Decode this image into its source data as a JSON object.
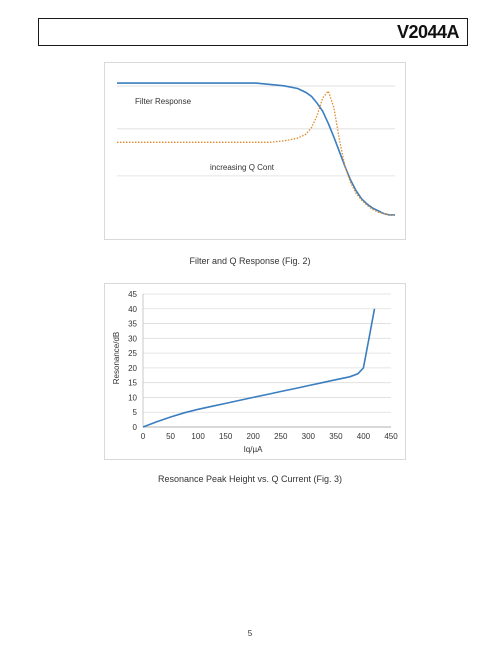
{
  "header": {
    "title": "V2044A"
  },
  "figures": {
    "fig2_caption": "Filter and Q Response (Fig. 2)",
    "fig3_caption": "Resonance Peak Height vs. Q Current (Fig. 3)"
  },
  "page_number": "5",
  "chart_data": [
    {
      "type": "line",
      "title": "",
      "xlabel": "",
      "ylabel": "",
      "grid": true,
      "annotations": [
        "Filter Response",
        "increasing Q Cont"
      ],
      "x": [
        0,
        10,
        20,
        30,
        40,
        50,
        55,
        60,
        65,
        68,
        70,
        72,
        74,
        76,
        78,
        80,
        82,
        84,
        86,
        88,
        90,
        92,
        94,
        96,
        98,
        100
      ],
      "series": [
        {
          "name": "",
          "style": "solid",
          "color": "#3a7ebf",
          "values": [
            0.94,
            0.94,
            0.94,
            0.94,
            0.94,
            0.94,
            0.93,
            0.92,
            0.9,
            0.87,
            0.84,
            0.79,
            0.73,
            0.64,
            0.54,
            0.43,
            0.32,
            0.22,
            0.14,
            0.08,
            0.04,
            0.01,
            -0.01,
            -0.03,
            -0.04,
            -0.04
          ]
        },
        {
          "name": "",
          "style": "dotted",
          "color": "#e08a2a",
          "values": [
            0.5,
            0.5,
            0.5,
            0.5,
            0.5,
            0.5,
            0.5,
            0.51,
            0.53,
            0.56,
            0.61,
            0.7,
            0.83,
            0.88,
            0.76,
            0.52,
            0.32,
            0.2,
            0.12,
            0.07,
            0.03,
            0.0,
            -0.02,
            -0.03,
            -0.04,
            -0.04
          ]
        }
      ]
    },
    {
      "type": "line",
      "title": "",
      "xlabel": "Iq/µA",
      "ylabel": "Resonance/dB",
      "grid": true,
      "xlim": [
        0,
        450
      ],
      "ylim": [
        0,
        45
      ],
      "x_ticks": [
        "0",
        "50",
        "100",
        "150",
        "200",
        "250",
        "300",
        "350",
        "400",
        "450"
      ],
      "y_ticks": [
        "0",
        "5",
        "10",
        "15",
        "20",
        "25",
        "30",
        "35",
        "40",
        "45"
      ],
      "series": [
        {
          "name": "",
          "color": "#3a7ebf",
          "x": [
            0,
            25,
            50,
            75,
            100,
            125,
            150,
            175,
            200,
            225,
            250,
            275,
            300,
            325,
            350,
            375,
            390,
            400,
            410,
            420
          ],
          "values": [
            0,
            1.8,
            3.4,
            4.8,
            6.0,
            7.0,
            8.0,
            9.0,
            10.0,
            11.0,
            12.0,
            13.0,
            14.0,
            15.0,
            16.0,
            17.0,
            18.0,
            20.0,
            30.0,
            40.0
          ]
        }
      ]
    }
  ]
}
